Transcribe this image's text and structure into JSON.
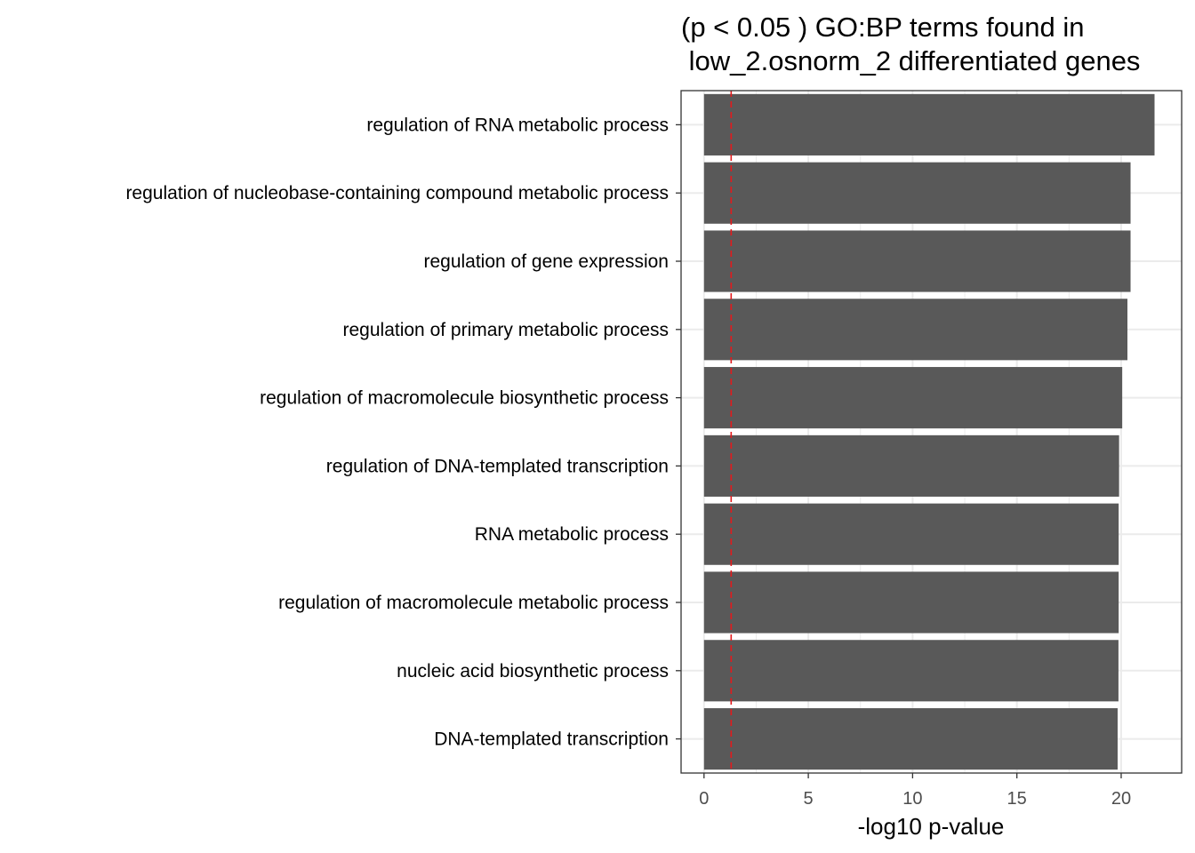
{
  "chart_data": {
    "type": "bar",
    "orientation": "horizontal",
    "title_lines": [
      "(p < 0.05 ) GO:BP terms found in",
      " low_2.osnorm_2 differentiated genes"
    ],
    "xlabel": "-log10 p-value",
    "ylabel": "",
    "categories": [
      "regulation of RNA metabolic process",
      "regulation of nucleobase-containing compound metabolic process",
      "regulation of gene expression",
      "regulation of primary metabolic process",
      "regulation of macromolecule biosynthetic process",
      "regulation of DNA-templated transcription",
      "RNA metabolic process",
      "regulation of macromolecule metabolic process",
      "nucleic acid biosynthetic process",
      "DNA-templated transcription"
    ],
    "values": [
      21.6,
      20.45,
      20.45,
      20.3,
      20.05,
      19.9,
      19.88,
      19.88,
      19.87,
      19.83
    ],
    "xlim": [
      -1.1,
      22.9
    ],
    "xticks": [
      0,
      5,
      10,
      15,
      20
    ],
    "xtick_labels": [
      "0",
      "5",
      "10",
      "15",
      "20"
    ],
    "threshold_line": {
      "x": 1.301,
      "style": "dashed",
      "color": "#e31a1c"
    },
    "bar_color": "#595959",
    "grid": true,
    "grid_color": "#ebebeb",
    "panel_border_color": "#333333",
    "legend": "none"
  }
}
